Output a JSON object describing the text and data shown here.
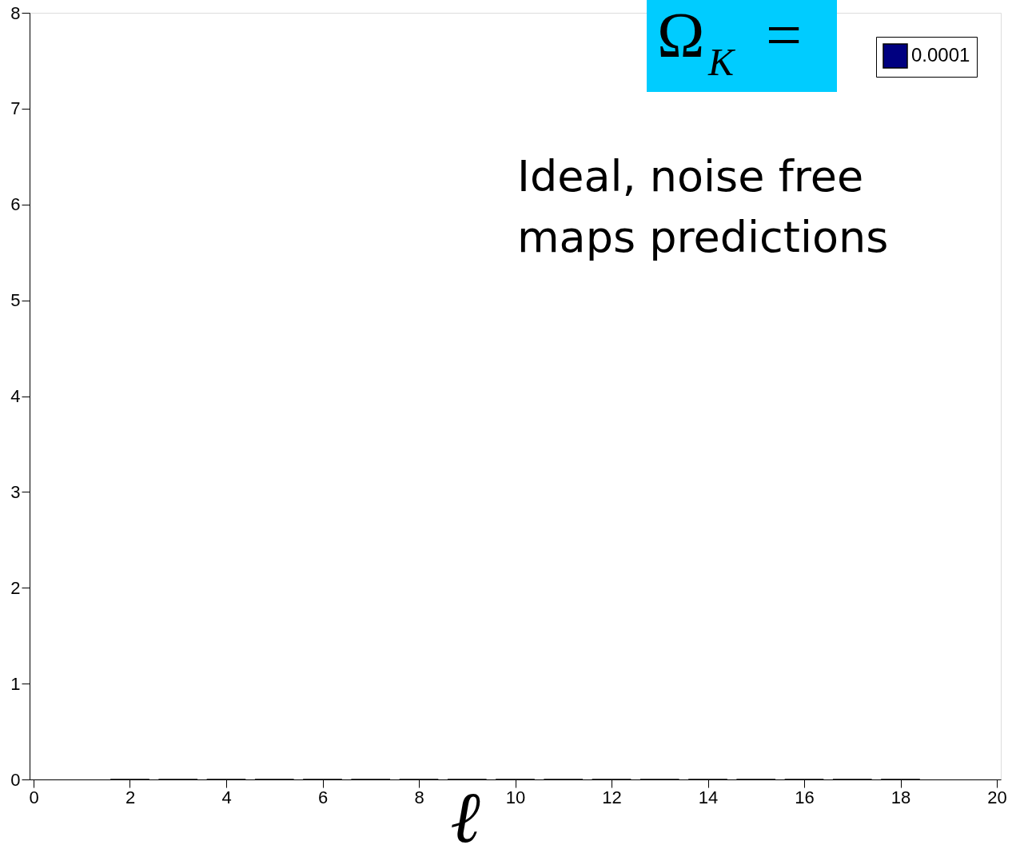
{
  "chart_data": {
    "type": "bar",
    "title": "Ω$_{K}$ =",
    "xlabel": "ℓ",
    "annotations": [
      "Ideal, noise free\nmaps predictions"
    ],
    "x": [
      2,
      3,
      4,
      5,
      6,
      7,
      8,
      9,
      10,
      11,
      12,
      13,
      14,
      15,
      16,
      17,
      18
    ],
    "series": [
      {
        "name": "0.0001",
        "color": "#000080",
        "values": [
          0,
          0,
          0,
          0,
          0,
          0,
          0,
          0,
          0,
          0,
          0,
          0,
          0,
          0,
          0,
          0,
          0
        ]
      }
    ],
    "xlim": [
      0,
      20
    ],
    "xticks": [
      0,
      2,
      4,
      6,
      8,
      10,
      12,
      14,
      16,
      18,
      20
    ],
    "ylim": [
      0,
      8
    ],
    "yticks": [
      0,
      1,
      2,
      3,
      4,
      5,
      6,
      7,
      8
    ],
    "grid": false,
    "legend": "top right"
  }
}
